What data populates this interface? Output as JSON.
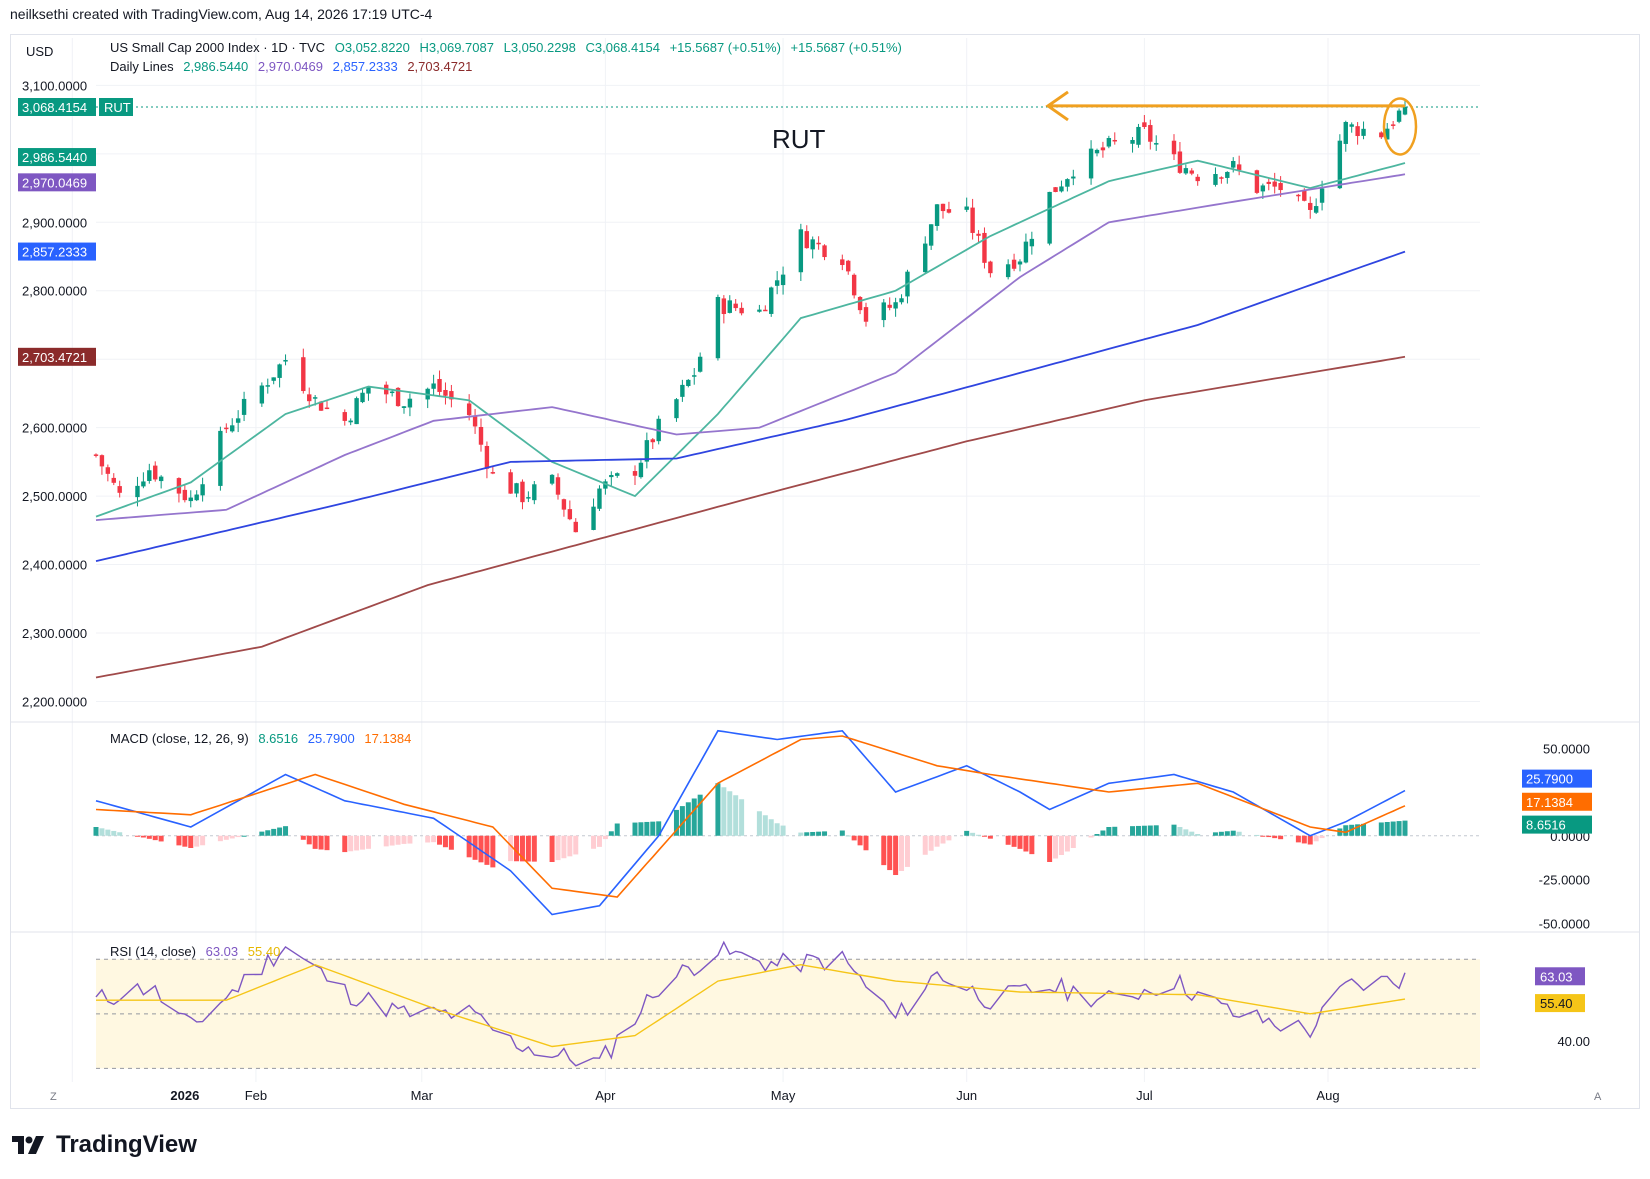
{
  "credit": "neilksethi created with TradingView.com, Aug 14, 2026 17:19 UTC-4",
  "brand": "TradingView",
  "currency": "USD",
  "header": {
    "symbol_line": "US Small Cap 2000 Index · 1D · TVC",
    "open": "O3,052.8220",
    "high": "H3,069.7087",
    "low": "L3,050.2298",
    "close": "C3,068.4154",
    "change1": "+15.5687 (+0.51%)",
    "change2": "+15.5687 (+0.51%)",
    "daily_lines_label": "Daily Lines",
    "daily_lines": [
      "2,986.5440",
      "2,970.0469",
      "2,857.2333",
      "2,703.4721"
    ]
  },
  "annotation": "RUT",
  "price_tags": [
    {
      "label": "3,068.4154",
      "suffix": "RUT",
      "value": 3068.4154,
      "color": "#089981"
    },
    {
      "label": "2,986.5440",
      "value": 2986.544,
      "color": "#089981"
    },
    {
      "label": "2,970.0469",
      "value": 2970.0469,
      "color": "#7e57c2"
    },
    {
      "label": "2,857.2333",
      "value": 2857.2333,
      "color": "#2962ff"
    },
    {
      "label": "2,703.4721",
      "value": 2703.4721,
      "color": "#8b2b2b"
    }
  ],
  "macd": {
    "label": "MACD (close, 12, 26, 9)",
    "values": [
      "8.6516",
      "25.7900",
      "17.1384"
    ],
    "tags": [
      {
        "label": "25.7900",
        "value": 25.79,
        "color": "#2962ff"
      },
      {
        "label": "17.1384",
        "value": 17.1384,
        "color": "#ff6d00"
      },
      {
        "label": "8.6516",
        "value": 8.6516,
        "color": "#089981"
      }
    ],
    "axis_labels": [
      "50.0000",
      "0.0000",
      "-25.0000",
      "-50.0000"
    ]
  },
  "rsi": {
    "label": "RSI (14, close)",
    "values": [
      "63.03",
      "55.40"
    ],
    "tags": [
      {
        "label": "63.03",
        "value": 63.03,
        "color": "#7e57c2"
      },
      {
        "label": "55.40",
        "value": 55.4,
        "color": "#f5c518"
      }
    ],
    "axis_labels": [
      "40.00"
    ]
  },
  "colors": {
    "up": "#089981",
    "down": "#f23645",
    "ema20": "#4db6a0",
    "sma50": "#9575cd",
    "sma100": "#2f45e0",
    "sma200": "#a04a4a",
    "arrow": "#f0a020"
  },
  "chart_data": {
    "type": "candlestick",
    "title": "US Small Cap 2000 Index · 1D · TVC",
    "x_tick_labels": [
      "2026",
      "Feb",
      "Mar",
      "Apr",
      "May",
      "Jun",
      "Jul",
      "Aug"
    ],
    "y_tick_labels": [
      "3,100.0000",
      "3,000.0000",
      "2,900.0000",
      "2,800.0000",
      "2,600.0000",
      "2,500.0000",
      "2,400.0000",
      "2,300.0000",
      "2,200.0000"
    ],
    "ylim": [
      2170,
      3140
    ],
    "close_waypoints": [
      [
        "2026-01-05",
        2560
      ],
      [
        "2026-01-09",
        2500
      ],
      [
        "2026-01-14",
        2540
      ],
      [
        "2026-01-21",
        2495
      ],
      [
        "2026-01-27",
        2600
      ],
      [
        "2026-02-02",
        2660
      ],
      [
        "2026-02-06",
        2700
      ],
      [
        "2026-02-11",
        2640
      ],
      [
        "2026-02-16",
        2610
      ],
      [
        "2026-02-20",
        2660
      ],
      [
        "2026-02-26",
        2640
      ],
      [
        "2026-03-03",
        2660
      ],
      [
        "2026-03-09",
        2620
      ],
      [
        "2026-03-13",
        2530
      ],
      [
        "2026-03-18",
        2500
      ],
      [
        "2026-03-23",
        2520
      ],
      [
        "2026-03-27",
        2450
      ],
      [
        "2026-03-31",
        2510
      ],
      [
        "2026-04-06",
        2540
      ],
      [
        "2026-04-10",
        2600
      ],
      [
        "2026-04-16",
        2680
      ],
      [
        "2026-04-20",
        2780
      ],
      [
        "2026-04-27",
        2770
      ],
      [
        "2026-05-04",
        2880
      ],
      [
        "2026-05-11",
        2850
      ],
      [
        "2026-05-15",
        2760
      ],
      [
        "2026-05-20",
        2780
      ],
      [
        "2026-05-27",
        2920
      ],
      [
        "2026-06-01",
        2910
      ],
      [
        "2026-06-05",
        2830
      ],
      [
        "2026-06-10",
        2850
      ],
      [
        "2026-06-15",
        2940
      ],
      [
        "2026-06-19",
        2980
      ],
      [
        "2026-06-25",
        3010
      ],
      [
        "2026-07-01",
        3030
      ],
      [
        "2026-07-06",
        2990
      ],
      [
        "2026-07-10",
        2970
      ],
      [
        "2026-07-16",
        2980
      ],
      [
        "2026-07-20",
        2950
      ],
      [
        "2026-07-24",
        2950
      ],
      [
        "2026-07-29",
        2910
      ],
      [
        "2026-07-31",
        2960
      ],
      [
        "2026-08-04",
        3040
      ],
      [
        "2026-08-10",
        3030
      ],
      [
        "2026-08-14",
        3068.4154
      ]
    ],
    "moving_averages": [
      {
        "name": "2,986.5440",
        "color": "#4db6a0",
        "waypoints": [
          [
            "2026-01-05",
            2470
          ],
          [
            "2026-01-21",
            2520
          ],
          [
            "2026-02-06",
            2620
          ],
          [
            "2026-02-20",
            2660
          ],
          [
            "2026-03-09",
            2640
          ],
          [
            "2026-03-23",
            2550
          ],
          [
            "2026-04-06",
            2500
          ],
          [
            "2026-04-20",
            2620
          ],
          [
            "2026-05-04",
            2760
          ],
          [
            "2026-05-20",
            2800
          ],
          [
            "2026-06-05",
            2880
          ],
          [
            "2026-06-25",
            2960
          ],
          [
            "2026-07-10",
            2990
          ],
          [
            "2026-07-29",
            2950
          ],
          [
            "2026-08-14",
            2986.544
          ]
        ]
      },
      {
        "name": "2,970.0469",
        "color": "#9575cd",
        "waypoints": [
          [
            "2026-01-05",
            2465
          ],
          [
            "2026-01-27",
            2480
          ],
          [
            "2026-02-16",
            2560
          ],
          [
            "2026-03-03",
            2610
          ],
          [
            "2026-03-23",
            2630
          ],
          [
            "2026-04-13",
            2590
          ],
          [
            "2026-04-27",
            2600
          ],
          [
            "2026-05-20",
            2680
          ],
          [
            "2026-06-10",
            2820
          ],
          [
            "2026-06-25",
            2900
          ],
          [
            "2026-07-16",
            2930
          ],
          [
            "2026-08-14",
            2970.0469
          ]
        ]
      },
      {
        "name": "2,857.2333",
        "color": "#2f45e0",
        "waypoints": [
          [
            "2026-01-05",
            2405
          ],
          [
            "2026-02-16",
            2490
          ],
          [
            "2026-03-16",
            2550
          ],
          [
            "2026-04-13",
            2555
          ],
          [
            "2026-05-11",
            2610
          ],
          [
            "2026-06-10",
            2680
          ],
          [
            "2026-07-10",
            2750
          ],
          [
            "2026-08-14",
            2857.2333
          ]
        ]
      },
      {
        "name": "2,703.4721",
        "color": "#a04a4a",
        "waypoints": [
          [
            "2026-01-05",
            2235
          ],
          [
            "2026-02-02",
            2280
          ],
          [
            "2026-03-02",
            2370
          ],
          [
            "2026-04-01",
            2440
          ],
          [
            "2026-05-01",
            2510
          ],
          [
            "2026-06-01",
            2580
          ],
          [
            "2026-07-01",
            2640
          ],
          [
            "2026-08-14",
            2703.4721
          ]
        ]
      }
    ],
    "macd_ylim": [
      -55,
      65
    ],
    "macd_waypoints": [
      [
        "2026-01-05",
        20
      ],
      [
        "2026-01-21",
        5
      ],
      [
        "2026-02-06",
        35
      ],
      [
        "2026-02-16",
        20
      ],
      [
        "2026-03-03",
        10
      ],
      [
        "2026-03-16",
        -20
      ],
      [
        "2026-03-23",
        -45
      ],
      [
        "2026-03-31",
        -40
      ],
      [
        "2026-04-10",
        0
      ],
      [
        "2026-04-20",
        60
      ],
      [
        "2026-04-30",
        55
      ],
      [
        "2026-05-11",
        60
      ],
      [
        "2026-05-20",
        25
      ],
      [
        "2026-06-01",
        40
      ],
      [
        "2026-06-10",
        25
      ],
      [
        "2026-06-15",
        15
      ],
      [
        "2026-06-25",
        30
      ],
      [
        "2026-07-06",
        35
      ],
      [
        "2026-07-16",
        25
      ],
      [
        "2026-07-29",
        0
      ],
      [
        "2026-08-04",
        8
      ],
      [
        "2026-08-14",
        25.79
      ]
    ],
    "signal_waypoints": [
      [
        "2026-01-05",
        15
      ],
      [
        "2026-01-21",
        12
      ],
      [
        "2026-02-11",
        35
      ],
      [
        "2026-02-26",
        18
      ],
      [
        "2026-03-13",
        5
      ],
      [
        "2026-03-23",
        -30
      ],
      [
        "2026-04-03",
        -35
      ],
      [
        "2026-04-20",
        30
      ],
      [
        "2026-05-04",
        55
      ],
      [
        "2026-05-11",
        57
      ],
      [
        "2026-05-27",
        40
      ],
      [
        "2026-06-05",
        35
      ],
      [
        "2026-06-25",
        25
      ],
      [
        "2026-07-10",
        30
      ],
      [
        "2026-07-29",
        5
      ],
      [
        "2026-08-04",
        2
      ],
      [
        "2026-08-14",
        17.1384
      ]
    ],
    "rsi_ylim": [
      25,
      80
    ],
    "rsi_levels": [
      70,
      50,
      30
    ],
    "rsi_waypoints": [
      [
        "2026-01-05",
        55
      ],
      [
        "2026-01-14",
        60
      ],
      [
        "2026-01-21",
        45
      ],
      [
        "2026-02-06",
        75
      ],
      [
        "2026-02-16",
        58
      ],
      [
        "2026-02-26",
        50
      ],
      [
        "2026-03-09",
        50
      ],
      [
        "2026-03-16",
        40
      ],
      [
        "2026-03-23",
        35
      ],
      [
        "2026-03-31",
        32
      ],
      [
        "2026-04-10",
        60
      ],
      [
        "2026-04-20",
        73
      ],
      [
        "2026-04-30",
        68
      ],
      [
        "2026-05-11",
        70
      ],
      [
        "2026-05-20",
        48
      ],
      [
        "2026-05-27",
        65
      ],
      [
        "2026-06-05",
        55
      ],
      [
        "2026-06-15",
        60
      ],
      [
        "2026-06-25",
        55
      ],
      [
        "2026-07-06",
        62
      ],
      [
        "2026-07-16",
        50
      ],
      [
        "2026-07-29",
        44
      ],
      [
        "2026-08-04",
        60
      ],
      [
        "2026-08-14",
        63.03
      ]
    ],
    "rsi_ma_waypoints": [
      [
        "2026-01-05",
        55
      ],
      [
        "2026-01-27",
        55
      ],
      [
        "2026-02-11",
        68
      ],
      [
        "2026-03-03",
        52
      ],
      [
        "2026-03-23",
        38
      ],
      [
        "2026-04-06",
        42
      ],
      [
        "2026-04-20",
        62
      ],
      [
        "2026-05-04",
        68
      ],
      [
        "2026-05-20",
        62
      ],
      [
        "2026-06-10",
        58
      ],
      [
        "2026-07-10",
        57
      ],
      [
        "2026-07-29",
        50
      ],
      [
        "2026-08-14",
        55.4
      ]
    ]
  }
}
